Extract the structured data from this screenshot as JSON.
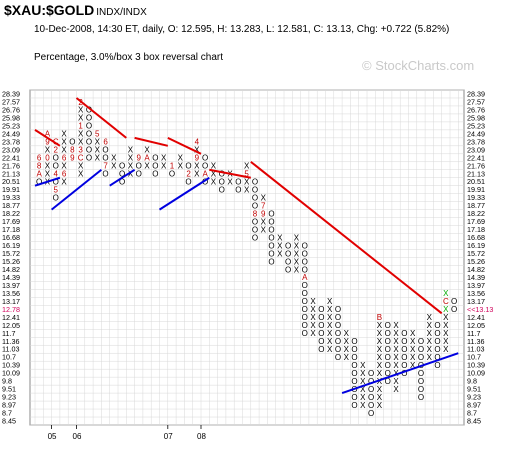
{
  "header": {
    "symbol": "$XAU:$GOLD",
    "exchange": "INDX/INDX",
    "quote": "10-Dec-2008, 14:30 ET, daily, O: 12.595, H: 13.283, L: 12.581, C: 13.13, Chg: +0.722 (5.82%)",
    "subtitle": "Percentage, 3.0%/box 3 box reversal chart",
    "watermark": "© StockCharts.com"
  },
  "chart_data": {
    "type": "point-and-figure",
    "box_size_percent": 3.0,
    "reversal_boxes": 3,
    "price_levels": [
      28.39,
      27.57,
      26.76,
      25.98,
      25.23,
      24.49,
      23.78,
      23.09,
      22.41,
      21.76,
      21.13,
      20.51,
      19.91,
      19.33,
      18.77,
      18.22,
      17.69,
      17.18,
      16.68,
      16.19,
      15.72,
      15.26,
      14.82,
      14.39,
      13.97,
      13.56,
      13.17,
      12.78,
      12.41,
      12.05,
      11.7,
      11.36,
      11.03,
      10.7,
      10.39,
      10.09,
      9.8,
      9.51,
      9.23,
      8.97,
      8.7,
      8.45
    ],
    "right_labels": [
      "28.39",
      "27.57",
      "26.76",
      "25.98",
      "25.23",
      "24.49",
      "23.78",
      "23.09",
      "22.41",
      "21.76",
      "21.13",
      "20.51",
      "19.91",
      "19.33",
      "18.77",
      "18.22",
      "17.69",
      "17.18",
      "16.68",
      "16.19",
      "15.72",
      "15.26",
      "14.82",
      "14.39",
      "13.97",
      "13.56",
      "13.17",
      "<<13.13",
      "12.41",
      "12.05",
      "11.7",
      "11.36",
      "11.03",
      "10.7",
      "10.39",
      "10.09",
      "9.8",
      "9.51",
      "9.23",
      "8.97",
      "8.7",
      "8.45"
    ],
    "left_labels": [
      "28.39",
      "27.57",
      "26.76",
      "25.98",
      "25.23",
      "24.49",
      "23.78",
      "23.09",
      "22.41",
      "21.76",
      "21.13",
      "20.51",
      "19.91",
      "19.33",
      "18.77",
      "18.22",
      "17.69",
      "17.18",
      "16.68",
      "16.19",
      "15.72",
      "15.26",
      "14.82",
      "14.39",
      "13.97",
      "13.56",
      "13.17",
      "12.78",
      "12.41",
      "12.05",
      "11.7",
      "11.36",
      "11.03",
      "10.7",
      "10.39",
      "10.09",
      "9.8",
      "9.51",
      "9.23",
      "8.97",
      "8.7",
      "8.45"
    ],
    "highlight_price": 13.13,
    "x_labels": [
      {
        "text": "05",
        "col": 2
      },
      {
        "text": "06",
        "col": 5
      },
      {
        "text": "07",
        "col": 16
      },
      {
        "text": "08",
        "col": 20
      }
    ],
    "columns": [
      {
        "type": "O",
        "top": 22.41,
        "bottom": 20.51,
        "marks": {
          "22.41": "6",
          "21.76": "8",
          "21.13": "A"
        }
      },
      {
        "type": "X",
        "top": 24.49,
        "bottom": 20.51,
        "marks": {
          "24.49": "A",
          "23.78": "9",
          "22.41": "0"
        }
      },
      {
        "type": "O",
        "top": 23.78,
        "bottom": 19.33,
        "marks": {
          "23.78": "C",
          "23.09": "2",
          "21.13": "4",
          "19.91": "5"
        }
      },
      {
        "type": "X",
        "top": 24.49,
        "bottom": 20.51,
        "marks": {
          "22.41": "6",
          "21.13": "6"
        }
      },
      {
        "type": "O",
        "top": 23.78,
        "bottom": 22.41,
        "marks": {
          "23.09": "8",
          "22.41": "9"
        }
      },
      {
        "type": "X",
        "top": 27.57,
        "bottom": 21.13,
        "marks": {
          "27.57": "2",
          "25.23": "1",
          "23.09": "3",
          "22.41": "C"
        }
      },
      {
        "type": "O",
        "top": 26.76,
        "bottom": 22.41,
        "marks": {}
      },
      {
        "type": "X",
        "top": 24.49,
        "bottom": 22.41,
        "marks": {
          "24.49": "5"
        }
      },
      {
        "type": "O",
        "top": 23.78,
        "bottom": 21.13,
        "marks": {
          "23.78": "6",
          "21.76": "7"
        }
      },
      {
        "type": "X",
        "top": 22.41,
        "bottom": 21.76,
        "marks": {}
      },
      {
        "type": "O",
        "top": 21.76,
        "bottom": 20.51,
        "marks": {}
      },
      {
        "type": "X",
        "top": 23.09,
        "bottom": 21.13,
        "marks": {}
      },
      {
        "type": "O",
        "top": 22.41,
        "bottom": 21.13,
        "marks": {
          "22.41": "9"
        }
      },
      {
        "type": "X",
        "top": 23.09,
        "bottom": 21.76,
        "marks": {
          "22.41": "A"
        }
      },
      {
        "type": "O",
        "top": 22.41,
        "bottom": 21.13,
        "marks": {}
      },
      {
        "type": "X",
        "top": 22.41,
        "bottom": 21.76,
        "marks": {}
      },
      {
        "type": "O",
        "top": 21.76,
        "bottom": 21.13,
        "marks": {
          "21.76": "1"
        }
      },
      {
        "type": "X",
        "top": 22.41,
        "bottom": 21.76,
        "marks": {}
      },
      {
        "type": "O",
        "top": 21.76,
        "bottom": 20.51,
        "marks": {
          "21.13": "2"
        }
      },
      {
        "type": "X",
        "top": 23.78,
        "bottom": 21.13,
        "marks": {
          "23.78": "4",
          "22.41": "9"
        }
      },
      {
        "type": "O",
        "top": 22.41,
        "bottom": 20.51,
        "marks": {
          "21.13": "A"
        }
      },
      {
        "type": "X",
        "top": 21.76,
        "bottom": 20.51,
        "marks": {}
      },
      {
        "type": "O",
        "top": 21.13,
        "bottom": 19.91,
        "marks": {}
      },
      {
        "type": "X",
        "top": 21.13,
        "bottom": 20.51,
        "marks": {}
      },
      {
        "type": "O",
        "top": 20.51,
        "bottom": 19.91,
        "marks": {}
      },
      {
        "type": "X",
        "top": 21.76,
        "bottom": 19.91,
        "marks": {
          "21.13": "5"
        }
      },
      {
        "type": "O",
        "top": 20.51,
        "bottom": 16.68,
        "marks": {
          "18.22": "8"
        }
      },
      {
        "type": "X",
        "top": 19.33,
        "bottom": 17.18,
        "marks": {
          "18.77": "7",
          "18.22": "9"
        }
      },
      {
        "type": "O",
        "top": 18.22,
        "bottom": 15.26,
        "marks": {}
      },
      {
        "type": "X",
        "top": 16.68,
        "bottom": 15.72,
        "marks": {}
      },
      {
        "type": "O",
        "top": 16.19,
        "bottom": 14.82,
        "marks": {}
      },
      {
        "type": "X",
        "top": 16.68,
        "bottom": 14.82,
        "marks": {}
      },
      {
        "type": "O",
        "top": 16.19,
        "bottom": 11.7,
        "marks": {
          "14.39": "A"
        }
      },
      {
        "type": "X",
        "top": 13.17,
        "bottom": 11.7,
        "marks": {}
      },
      {
        "type": "O",
        "top": 12.78,
        "bottom": 11.03,
        "marks": {}
      },
      {
        "type": "X",
        "top": 13.17,
        "bottom": 11.03,
        "marks": {}
      },
      {
        "type": "O",
        "top": 12.78,
        "bottom": 10.7,
        "marks": {}
      },
      {
        "type": "X",
        "top": 11.7,
        "bottom": 10.7,
        "marks": {}
      },
      {
        "type": "O",
        "top": 11.36,
        "bottom": 8.97,
        "marks": {}
      },
      {
        "type": "X",
        "top": 10.39,
        "bottom": 8.97,
        "marks": {}
      },
      {
        "type": "O",
        "top": 10.09,
        "bottom": 8.7,
        "marks": {}
      },
      {
        "type": "X",
        "top": 12.41,
        "bottom": 8.97,
        "marks": {
          "12.41": "B"
        }
      },
      {
        "type": "O",
        "top": 12.05,
        "bottom": 9.8,
        "marks": {}
      },
      {
        "type": "X",
        "top": 12.05,
        "bottom": 9.51,
        "marks": {}
      },
      {
        "type": "O",
        "top": 11.7,
        "bottom": 10.09,
        "marks": {}
      },
      {
        "type": "X",
        "top": 11.7,
        "bottom": 10.39,
        "marks": {}
      },
      {
        "type": "O",
        "top": 11.36,
        "bottom": 9.23,
        "marks": {}
      },
      {
        "type": "X",
        "top": 12.41,
        "bottom": 10.7,
        "marks": {}
      },
      {
        "type": "O",
        "top": 12.05,
        "bottom": 10.39,
        "marks": {}
      },
      {
        "type": "X",
        "top": 13.56,
        "bottom": 11.03,
        "marks": {
          "13.56": "X",
          "13.17": "C",
          "12.78": "X"
        }
      },
      {
        "type": "O",
        "top": 13.17,
        "bottom": 12.78,
        "marks": {}
      }
    ],
    "last_column_recent": 3,
    "trend_lines": [
      {
        "color": "#e10000",
        "from": [
          0,
          24.49
        ],
        "to": [
          2,
          23.09
        ]
      },
      {
        "color": "#e10000",
        "from": [
          5,
          27.57
        ],
        "to": [
          10,
          23.78
        ]
      },
      {
        "color": "#e10000",
        "from": [
          12,
          23.78
        ],
        "to": [
          15,
          23.09
        ]
      },
      {
        "color": "#e10000",
        "from": [
          16,
          23.78
        ],
        "to": [
          19,
          22.41
        ]
      },
      {
        "color": "#e10000",
        "from": [
          21,
          21.13
        ],
        "to": [
          25,
          20.51
        ]
      },
      {
        "color": "#e10000",
        "from": [
          26,
          21.76
        ],
        "to": [
          48,
          12.41
        ]
      },
      {
        "color": "#0000e0",
        "from": [
          0,
          19.91
        ],
        "to": [
          2,
          20.51
        ]
      },
      {
        "color": "#0000e0",
        "from": [
          2,
          18.22
        ],
        "to": [
          7,
          21.13
        ]
      },
      {
        "color": "#0000e0",
        "from": [
          9,
          19.91
        ],
        "to": [
          11,
          21.13
        ]
      },
      {
        "color": "#0000e0",
        "from": [
          15,
          18.22
        ],
        "to": [
          20,
          20.51
        ]
      },
      {
        "color": "#0000e0",
        "from": [
          37,
          9.23
        ],
        "to": [
          50,
          10.7
        ]
      }
    ],
    "colors": {
      "red": "#e10000",
      "blue": "#0000e0",
      "highlight": "#d0005a",
      "green": "#00aa00",
      "grid": "#d8d8d8",
      "month": "#c00000"
    }
  }
}
